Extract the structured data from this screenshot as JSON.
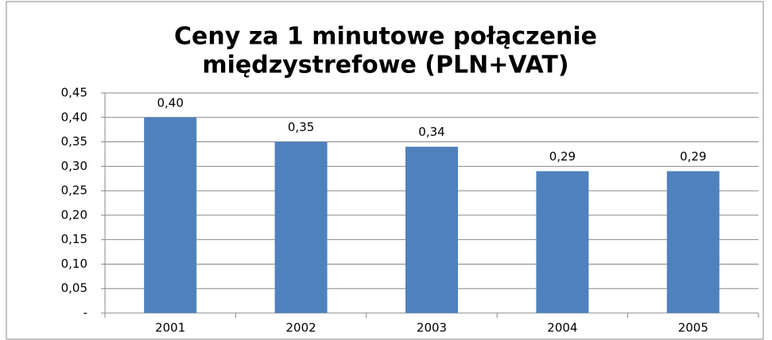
{
  "chart_data": {
    "type": "bar",
    "title": [
      "Ceny za 1 minutowe połączenie",
      "międzystrefowe (PLN+VAT)"
    ],
    "categories": [
      "2001",
      "2002",
      "2003",
      "2004",
      "2005"
    ],
    "values": [
      0.4,
      0.35,
      0.34,
      0.29,
      0.29
    ],
    "value_labels": [
      "0,40",
      "0,35",
      "0,34",
      "0,29",
      "0,29"
    ],
    "color": "#4f81bd",
    "ylim": [
      0,
      0.45
    ],
    "yticks": [
      {
        "value": 0,
        "label": "-"
      },
      {
        "value": 0.05,
        "label": "0,05"
      },
      {
        "value": 0.1,
        "label": "0,10"
      },
      {
        "value": 0.15,
        "label": "0,15"
      },
      {
        "value": 0.2,
        "label": "0,20"
      },
      {
        "value": 0.25,
        "label": "0,25"
      },
      {
        "value": 0.3,
        "label": "0,30"
      },
      {
        "value": 0.35,
        "label": "0,35"
      },
      {
        "value": 0.4,
        "label": "0,40"
      },
      {
        "value": 0.45,
        "label": "0,45"
      }
    ],
    "grid": true
  }
}
